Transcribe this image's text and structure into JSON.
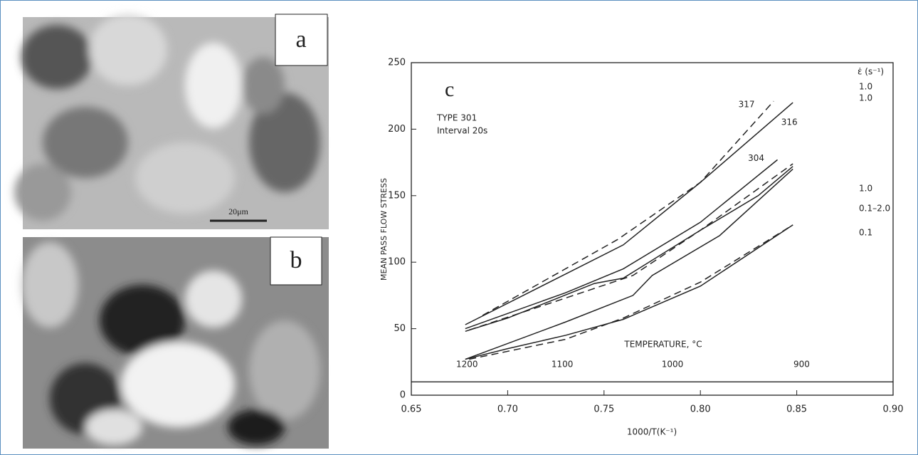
{
  "figure": {
    "panel_labels": [
      "a",
      "b"
    ],
    "scale_bar": "20μm"
  },
  "chart_data": {
    "type": "line",
    "panel_label": "c",
    "annotations": [
      "TYPE 301",
      "Interval 20s"
    ],
    "x_label": "1000/T(K⁻¹)",
    "y_label": "MEAN PASS FLOW STRESS",
    "xlim": [
      0.65,
      0.9
    ],
    "ylim": [
      0,
      250
    ],
    "xticks": [
      0.65,
      {
        "value": 0.7,
        "label": "0.70"
      },
      0.75,
      {
        "value": 0.8,
        "label": "0.80"
      },
      0.85,
      {
        "value": 0.9,
        "label": "0.90"
      }
    ],
    "yticks": [
      0,
      50,
      100,
      150,
      200,
      250
    ],
    "temperature_axis": {
      "label": "TEMPERATURE, °C",
      "y": 10,
      "ticks": [
        1200,
        1100,
        1000,
        900
      ]
    },
    "rate_header": "ε̇ (s⁻¹)",
    "rate_labels": [
      "1.0",
      "1.0",
      "1.0",
      "0.1–2.0",
      "0.1"
    ],
    "color": "#222222",
    "series": [
      {
        "name": "317",
        "dashed": true,
        "x": [
          0.687,
          0.757,
          0.8,
          0.838
        ],
        "values": [
          60,
          117,
          160,
          221
        ]
      },
      {
        "name": "316",
        "dashed": false,
        "x": [
          0.678,
          0.76,
          0.8,
          0.848
        ],
        "values": [
          53,
          113,
          160,
          220
        ]
      },
      {
        "name": "304",
        "dashed": false,
        "x": [
          0.678,
          0.73,
          0.76,
          0.8,
          0.84
        ],
        "values": [
          50,
          77,
          95,
          130,
          177
        ]
      },
      {
        "dashed": false,
        "x": [
          0.678,
          0.7,
          0.745,
          0.76,
          0.8,
          0.83,
          0.848
        ],
        "values": [
          48,
          58,
          84,
          88,
          124,
          150,
          172
        ]
      },
      {
        "dashed": true,
        "x": [
          0.68,
          0.73,
          0.765,
          0.8,
          0.848
        ],
        "values": [
          49,
          73,
          90,
          124,
          174
        ]
      },
      {
        "dashed": false,
        "x": [
          0.678,
          0.73,
          0.765,
          0.775,
          0.81,
          0.848
        ],
        "values": [
          27,
          55,
          75,
          90,
          120,
          170
        ]
      },
      {
        "dashed": false,
        "x": [
          0.678,
          0.7,
          0.73,
          0.76,
          0.8,
          0.848
        ],
        "values": [
          27,
          35,
          45,
          57,
          82,
          128
        ]
      },
      {
        "dashed": true,
        "x": [
          0.68,
          0.73,
          0.76,
          0.8,
          0.848
        ],
        "values": [
          27,
          42,
          58,
          85,
          128
        ]
      }
    ]
  }
}
